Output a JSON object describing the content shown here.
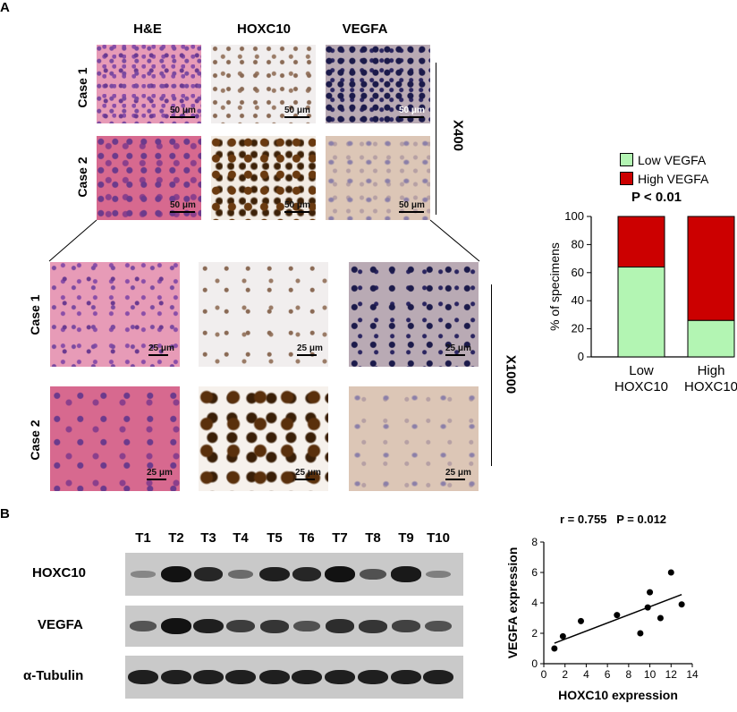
{
  "panel_a": {
    "letter": "A",
    "columns": [
      "H&E",
      "HOXC10",
      "VEGFA"
    ],
    "rows": [
      "Case 1",
      "Case 2"
    ],
    "rows_zoom": [
      "Case 1",
      "Case 2"
    ],
    "mag_top": "X400",
    "mag_bottom": "X1000",
    "scale_top": "50 μm",
    "scale_bottom": "25 μm"
  },
  "panel_b": {
    "letter": "B",
    "lanes": [
      "T1",
      "T2",
      "T3",
      "T4",
      "T5",
      "T6",
      "T7",
      "T8",
      "T9",
      "T10"
    ],
    "blot_rows": [
      "HOXC10",
      "VEGFA",
      "α-Tubulin"
    ],
    "band_intensity": {
      "HOXC10": [
        0.15,
        1.0,
        0.85,
        0.35,
        0.9,
        0.85,
        1.0,
        0.55,
        0.95,
        0.2
      ],
      "VEGFA": [
        0.5,
        1.0,
        0.9,
        0.7,
        0.75,
        0.55,
        0.8,
        0.75,
        0.65,
        0.55
      ],
      "α-Tubulin": [
        0.9,
        0.9,
        0.9,
        0.9,
        0.9,
        0.9,
        0.9,
        0.9,
        0.9,
        0.9
      ]
    }
  },
  "chart_data": [
    {
      "type": "bar",
      "stacked": true,
      "categories": [
        "Low HOXC10",
        "High HOXC10"
      ],
      "series": [
        {
          "name": "Low VEGFA",
          "values": [
            64,
            26
          ],
          "color": "#b3f5b3"
        },
        {
          "name": "High VEGFA",
          "values": [
            36,
            74
          ],
          "color": "#cc0000"
        }
      ],
      "annotation": "P < 0.01",
      "ylabel": "% of specimens",
      "xlabel": "",
      "ylim": [
        0,
        100
      ],
      "yticks": [
        0,
        20,
        40,
        60,
        80,
        100
      ],
      "legend": "top"
    },
    {
      "type": "scatter",
      "title": "r = 0.755   P = 0.012",
      "xlabel": "HOXC10 expression",
      "ylabel": "VEGFA expression",
      "xlim": [
        0,
        14
      ],
      "ylim": [
        0,
        8
      ],
      "xticks": [
        0,
        2,
        4,
        6,
        8,
        10,
        12,
        14
      ],
      "yticks": [
        0,
        2,
        4,
        6,
        8
      ],
      "points": [
        {
          "x": 1.0,
          "y": 1.0
        },
        {
          "x": 1.8,
          "y": 1.8
        },
        {
          "x": 3.5,
          "y": 2.8
        },
        {
          "x": 6.9,
          "y": 3.2
        },
        {
          "x": 9.1,
          "y": 2.0
        },
        {
          "x": 9.8,
          "y": 3.7
        },
        {
          "x": 10.0,
          "y": 4.7
        },
        {
          "x": 11.0,
          "y": 3.0
        },
        {
          "x": 12.0,
          "y": 6.0
        },
        {
          "x": 13.0,
          "y": 3.9
        }
      ],
      "fit_line": {
        "x": [
          1.0,
          13.0
        ],
        "y": [
          1.35,
          4.55
        ]
      }
    }
  ]
}
